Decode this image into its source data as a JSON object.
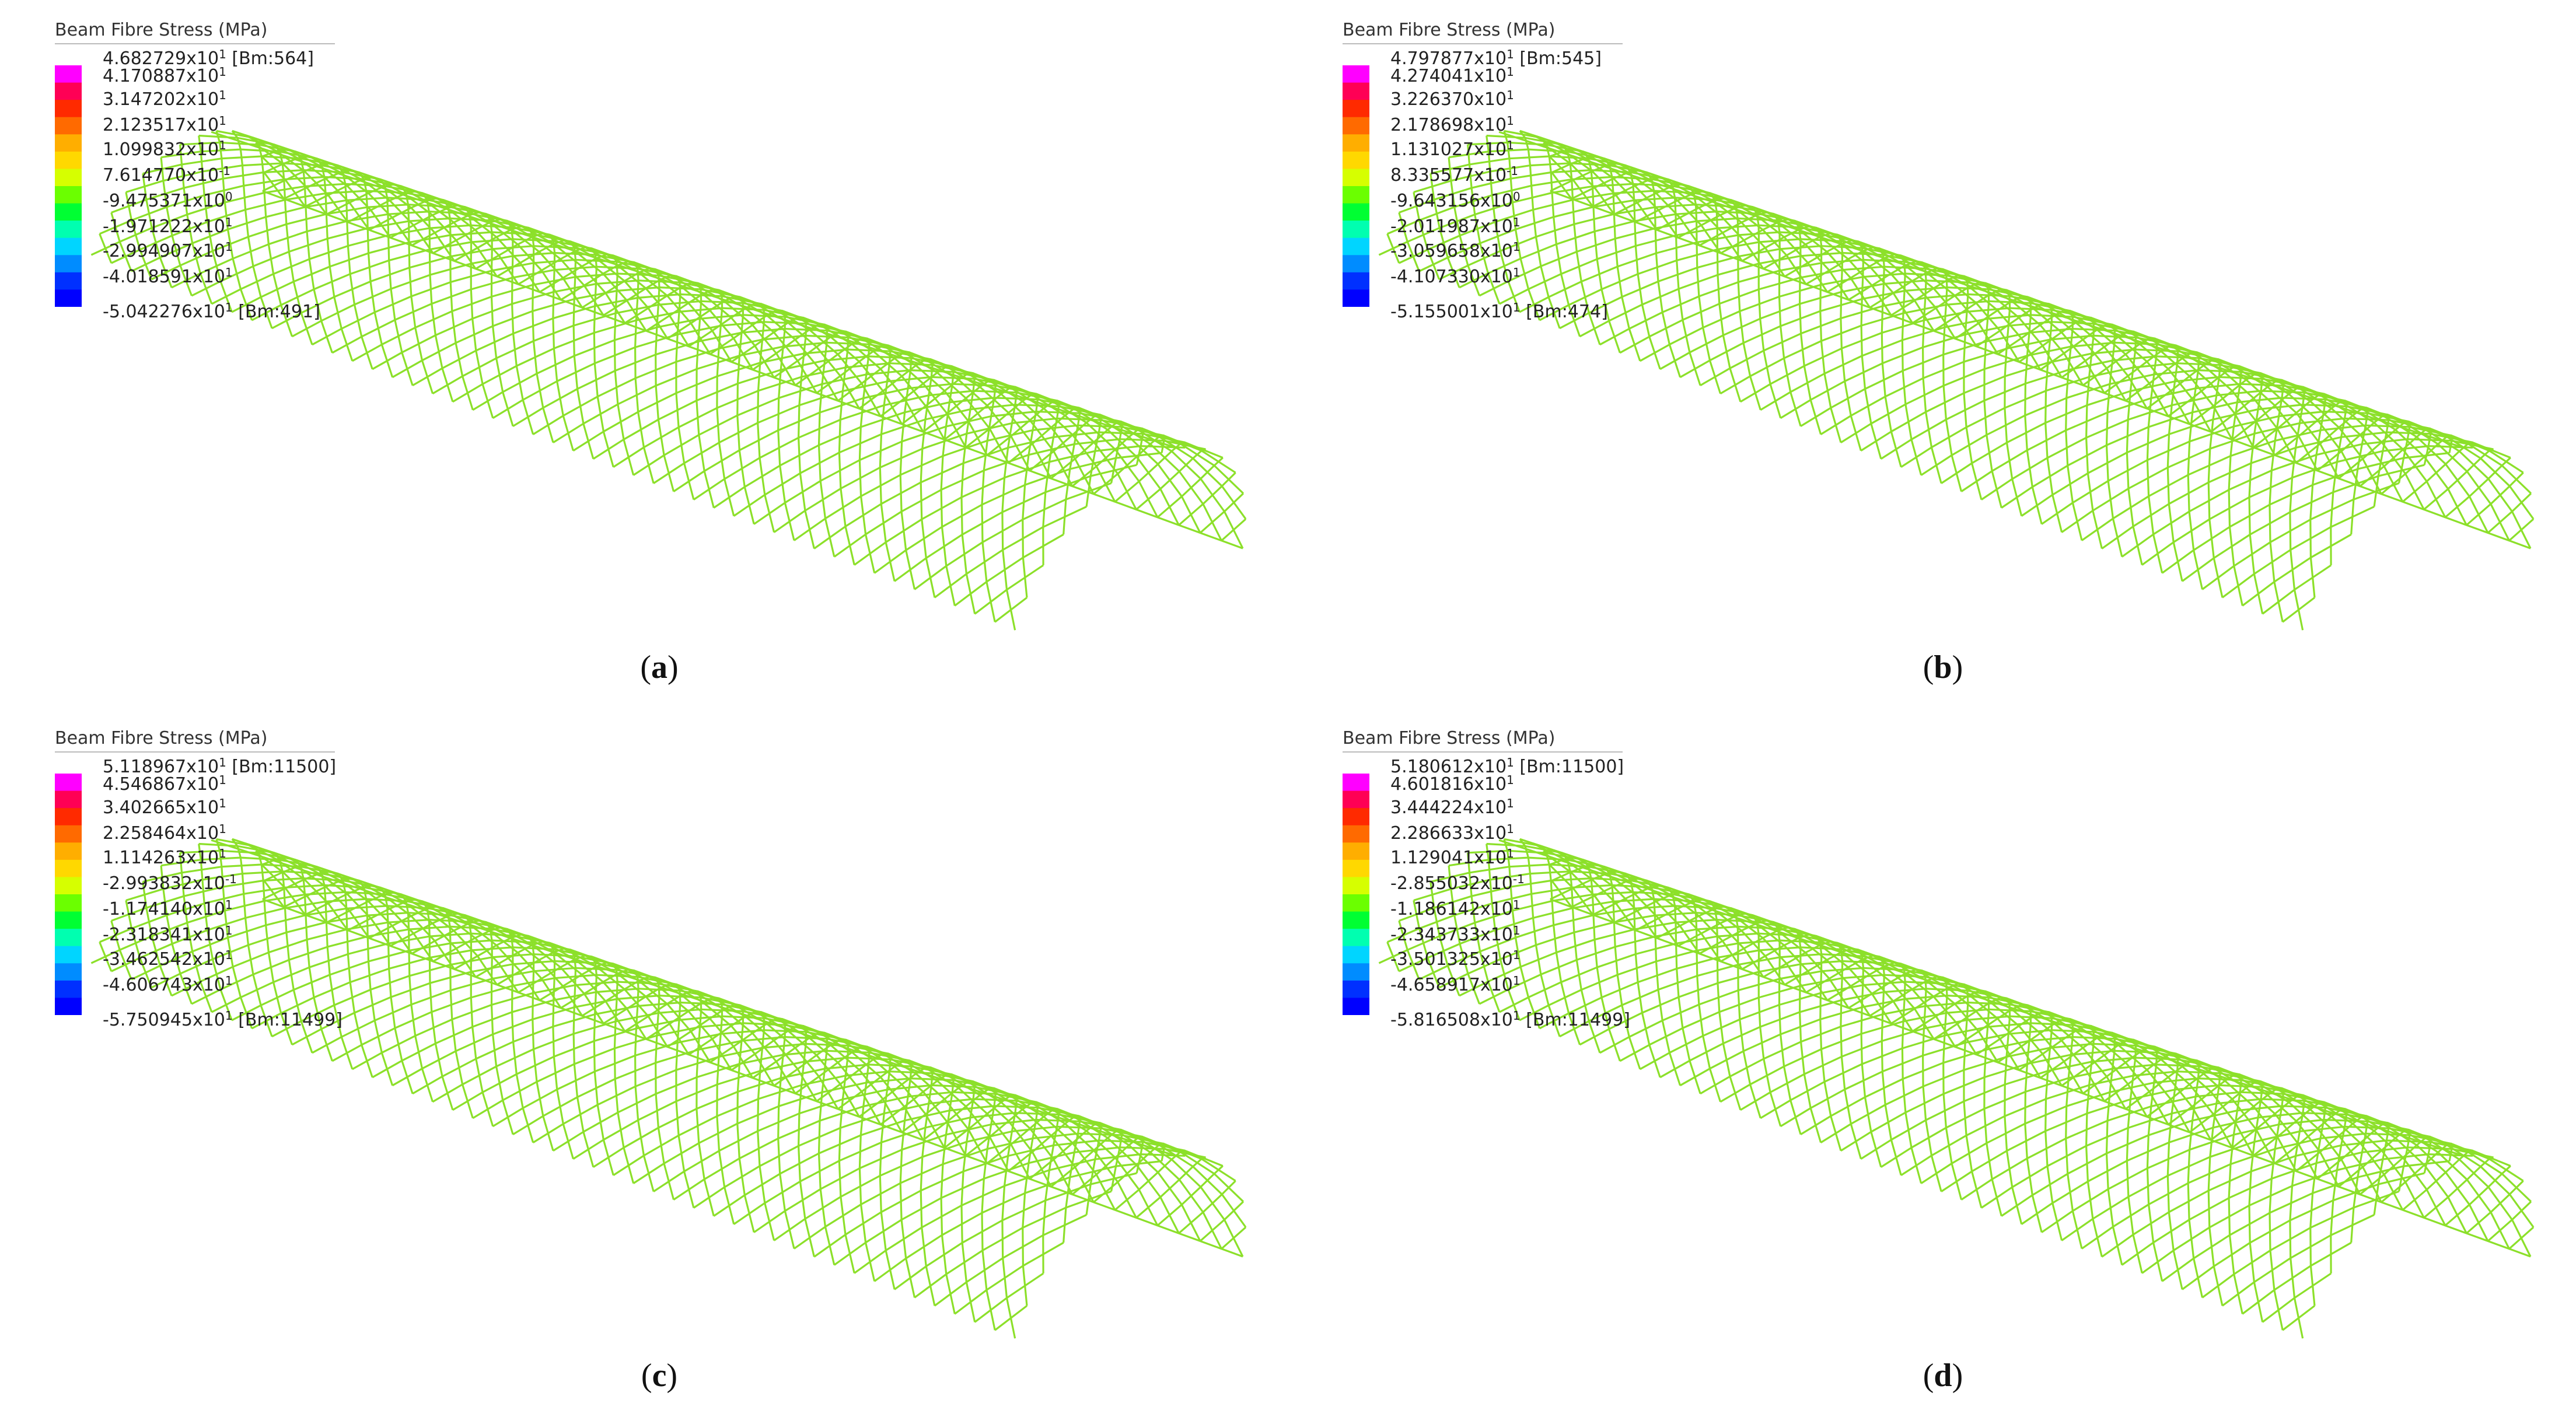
{
  "colors": {
    "mesh": "#8ce02a",
    "colorbar": [
      "#ff00ff",
      "#ff0055",
      "#ff2a00",
      "#ff6a00",
      "#ffae00",
      "#ffd800",
      "#d6ff00",
      "#6bff00",
      "#00ff33",
      "#00ffb0",
      "#00d5ff",
      "#008cff",
      "#0030ff",
      "#0000ff"
    ]
  },
  "panels": [
    {
      "id": "a",
      "title": "Beam Fibre Stress  (MPa)",
      "labels": [
        {
          "m": "4.682729x10",
          "e": "1",
          "tag": "[Bm:564]"
        },
        {
          "m": "4.170887x10",
          "e": "1",
          "tag": ""
        },
        {
          "m": "3.147202x10",
          "e": "1",
          "tag": ""
        },
        {
          "m": "2.123517x10",
          "e": "1",
          "tag": ""
        },
        {
          "m": "1.099832x10",
          "e": "1",
          "tag": ""
        },
        {
          "m": "7.614770x10",
          "e": "-1",
          "tag": ""
        },
        {
          "m": "-9.475371x10",
          "e": "0",
          "tag": ""
        },
        {
          "m": "-1.971222x10",
          "e": "1",
          "tag": ""
        },
        {
          "m": "-2.994907x10",
          "e": "1",
          "tag": ""
        },
        {
          "m": "-4.018591x10",
          "e": "1",
          "tag": ""
        },
        {
          "m": "-5.042276x10",
          "e": "1",
          "tag": "[Bm:491]"
        }
      ],
      "caption_pre": "(",
      "caption_letter": "a",
      "caption_post": ")"
    },
    {
      "id": "b",
      "title": "Beam Fibre Stress  (MPa)",
      "labels": [
        {
          "m": "4.797877x10",
          "e": "1",
          "tag": "[Bm:545]"
        },
        {
          "m": "4.274041x10",
          "e": "1",
          "tag": ""
        },
        {
          "m": "3.226370x10",
          "e": "1",
          "tag": ""
        },
        {
          "m": "2.178698x10",
          "e": "1",
          "tag": ""
        },
        {
          "m": "1.131027x10",
          "e": "1",
          "tag": ""
        },
        {
          "m": "8.335577x10",
          "e": "-1",
          "tag": ""
        },
        {
          "m": "-9.643156x10",
          "e": "0",
          "tag": ""
        },
        {
          "m": "-2.011987x10",
          "e": "1",
          "tag": ""
        },
        {
          "m": "-3.059658x10",
          "e": "1",
          "tag": ""
        },
        {
          "m": "-4.107330x10",
          "e": "1",
          "tag": ""
        },
        {
          "m": "-5.155001x10",
          "e": "1",
          "tag": "[Bm:474]"
        }
      ],
      "caption_pre": "(",
      "caption_letter": "b",
      "caption_post": ")"
    },
    {
      "id": "c",
      "title": "Beam Fibre Stress  (MPa)",
      "labels": [
        {
          "m": "5.118967x10",
          "e": "1",
          "tag": "[Bm:11500]"
        },
        {
          "m": "4.546867x10",
          "e": "1",
          "tag": ""
        },
        {
          "m": "3.402665x10",
          "e": "1",
          "tag": ""
        },
        {
          "m": "2.258464x10",
          "e": "1",
          "tag": ""
        },
        {
          "m": "1.114263x10",
          "e": "1",
          "tag": ""
        },
        {
          "m": "-2.993832x10",
          "e": "-1",
          "tag": ""
        },
        {
          "m": "-1.174140x10",
          "e": "1",
          "tag": ""
        },
        {
          "m": "-2.318341x10",
          "e": "1",
          "tag": ""
        },
        {
          "m": "-3.462542x10",
          "e": "1",
          "tag": ""
        },
        {
          "m": "-4.606743x10",
          "e": "1",
          "tag": ""
        },
        {
          "m": "-5.750945x10",
          "e": "1",
          "tag": "[Bm:11499]"
        }
      ],
      "caption_pre": "(",
      "caption_letter": "c",
      "caption_post": ")"
    },
    {
      "id": "d",
      "title": "Beam Fibre Stress  (MPa)",
      "labels": [
        {
          "m": "5.180612x10",
          "e": "1",
          "tag": "[Bm:11500]"
        },
        {
          "m": "4.601816x10",
          "e": "1",
          "tag": ""
        },
        {
          "m": "3.444224x10",
          "e": "1",
          "tag": ""
        },
        {
          "m": "2.286633x10",
          "e": "1",
          "tag": ""
        },
        {
          "m": "1.129041x10",
          "e": "1",
          "tag": ""
        },
        {
          "m": "-2.855032x10",
          "e": "-1",
          "tag": ""
        },
        {
          "m": "-1.186142x10",
          "e": "1",
          "tag": ""
        },
        {
          "m": "-2.343733x10",
          "e": "1",
          "tag": ""
        },
        {
          "m": "-3.501325x10",
          "e": "1",
          "tag": ""
        },
        {
          "m": "-4.658917x10",
          "e": "1",
          "tag": ""
        },
        {
          "m": "-5.816508x10",
          "e": "1",
          "tag": "[Bm:11499]"
        }
      ],
      "caption_pre": "(",
      "caption_letter": "d",
      "caption_post": ")"
    }
  ]
}
